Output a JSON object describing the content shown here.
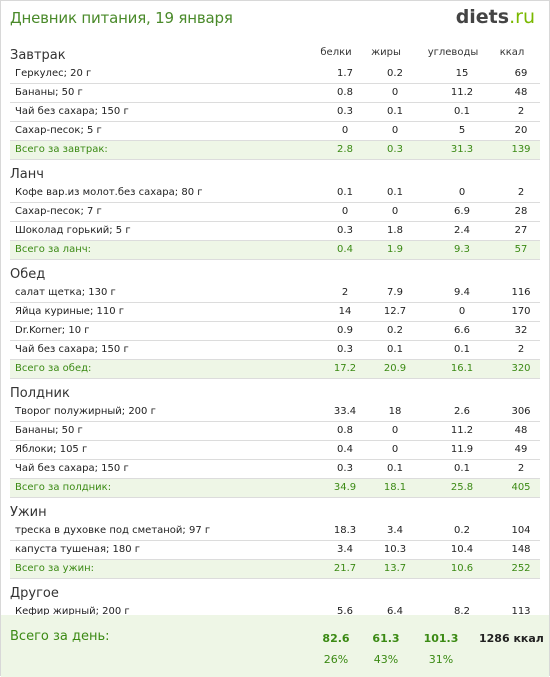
{
  "header": {
    "title": "Дневник питания, 19 января",
    "logo_main": "diets",
    "logo_tld": ".ru"
  },
  "columns": {
    "protein": "белки",
    "fat": "жиры",
    "carbs": "углеводы",
    "kcal": "ккал"
  },
  "sections": [
    {
      "title": "Завтрак",
      "rows": [
        {
          "name": "Геркулес; 20 г",
          "p": "1.7",
          "f": "0.2",
          "c": "15",
          "k": "69"
        },
        {
          "name": "Бананы; 50 г",
          "p": "0.8",
          "f": "0",
          "c": "11.2",
          "k": "48"
        },
        {
          "name": "Чай без сахара; 150 г",
          "p": "0.3",
          "f": "0.1",
          "c": "0.1",
          "k": "2"
        },
        {
          "name": "Сахар-песок; 5 г",
          "p": "0",
          "f": "0",
          "c": "5",
          "k": "20"
        }
      ],
      "total": {
        "name": "Всего за завтрак:",
        "p": "2.8",
        "f": "0.3",
        "c": "31.3",
        "k": "139"
      }
    },
    {
      "title": "Ланч",
      "rows": [
        {
          "name": "Кофе вар.из молот.без сахара; 80 г",
          "p": "0.1",
          "f": "0.1",
          "c": "0",
          "k": "2"
        },
        {
          "name": "Сахар-песок; 7 г",
          "p": "0",
          "f": "0",
          "c": "6.9",
          "k": "28"
        },
        {
          "name": "Шоколад горький; 5 г",
          "p": "0.3",
          "f": "1.8",
          "c": "2.4",
          "k": "27"
        }
      ],
      "total": {
        "name": "Всего за ланч:",
        "p": "0.4",
        "f": "1.9",
        "c": "9.3",
        "k": "57"
      }
    },
    {
      "title": "Обед",
      "rows": [
        {
          "name": "салат щетка; 130 г",
          "p": "2",
          "f": "7.9",
          "c": "9.4",
          "k": "116"
        },
        {
          "name": "Яйца куриные; 110 г",
          "p": "14",
          "f": "12.7",
          "c": "0",
          "k": "170"
        },
        {
          "name": "Dr.Korner; 10 г",
          "p": "0.9",
          "f": "0.2",
          "c": "6.6",
          "k": "32"
        },
        {
          "name": "Чай без сахара; 150 г",
          "p": "0.3",
          "f": "0.1",
          "c": "0.1",
          "k": "2"
        }
      ],
      "total": {
        "name": "Всего за обед:",
        "p": "17.2",
        "f": "20.9",
        "c": "16.1",
        "k": "320"
      }
    },
    {
      "title": "Полдник",
      "rows": [
        {
          "name": "Творог полужирный; 200 г",
          "p": "33.4",
          "f": "18",
          "c": "2.6",
          "k": "306"
        },
        {
          "name": "Бананы; 50 г",
          "p": "0.8",
          "f": "0",
          "c": "11.2",
          "k": "48"
        },
        {
          "name": "Яблоки; 105 г",
          "p": "0.4",
          "f": "0",
          "c": "11.9",
          "k": "49"
        },
        {
          "name": "Чай без сахара; 150 г",
          "p": "0.3",
          "f": "0.1",
          "c": "0.1",
          "k": "2"
        }
      ],
      "total": {
        "name": "Всего за полдник:",
        "p": "34.9",
        "f": "18.1",
        "c": "25.8",
        "k": "405"
      }
    },
    {
      "title": "Ужин",
      "rows": [
        {
          "name": "треска в духовке под сметаной; 97 г",
          "p": "18.3",
          "f": "3.4",
          "c": "0.2",
          "k": "104"
        },
        {
          "name": "капуста тушеная; 180 г",
          "p": "3.4",
          "f": "10.3",
          "c": "10.4",
          "k": "148"
        }
      ],
      "total": {
        "name": "Всего за ужин:",
        "p": "21.7",
        "f": "13.7",
        "c": "10.6",
        "k": "252"
      }
    },
    {
      "title": "Другое",
      "rows": [
        {
          "name": "Кефир жирный; 200 г",
          "p": "5.6",
          "f": "6.4",
          "c": "8.2",
          "k": "113"
        }
      ],
      "total": null
    }
  ],
  "day_total": {
    "label": "Всего за день:",
    "p": "82.6",
    "f": "61.3",
    "c": "101.3",
    "k": "1286 ккал",
    "p_pct": "26%",
    "f_pct": "43%",
    "c_pct": "31%"
  }
}
